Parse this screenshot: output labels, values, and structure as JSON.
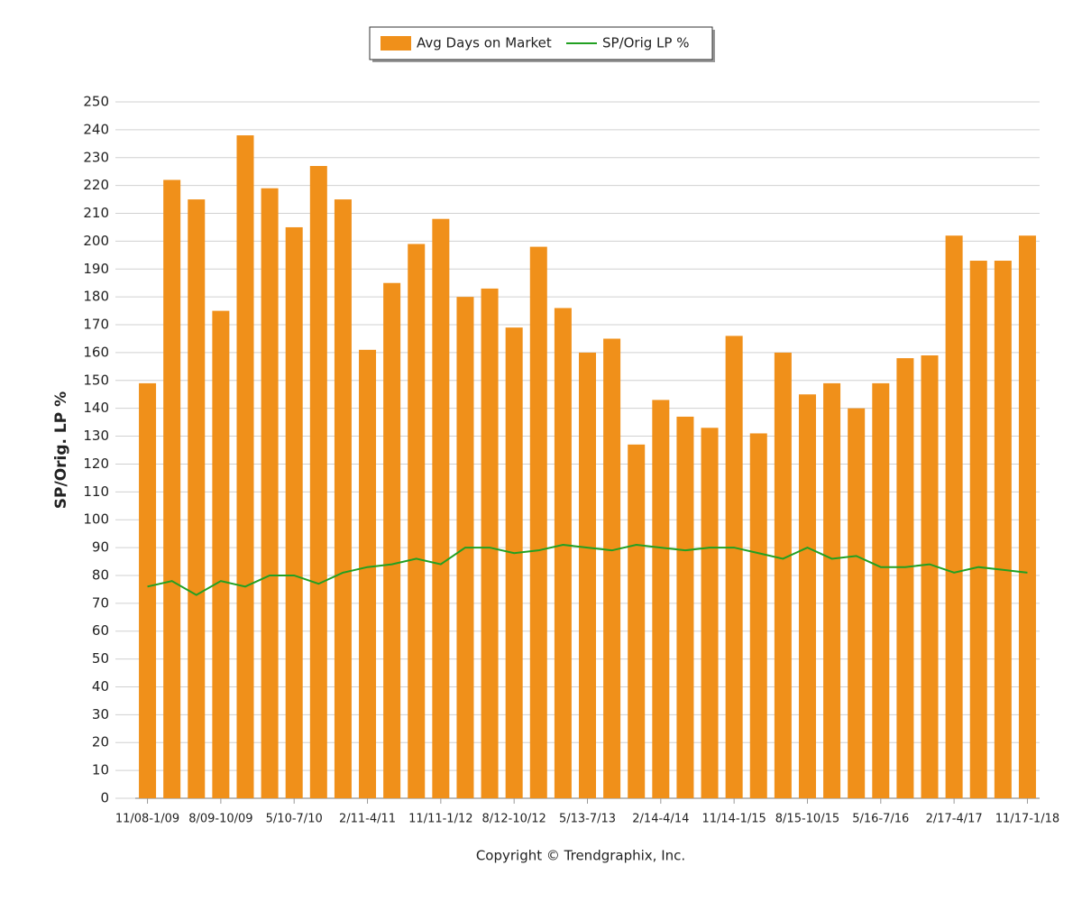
{
  "chart_data": {
    "type": "bar",
    "y_axis_label": "SP/Orig. LP %",
    "footer": "Copyright © Trendgraphix, Inc.",
    "legend_position": "top",
    "grid": true,
    "categories": [
      "11/08-1/09",
      null,
      null,
      "8/09-10/09",
      null,
      null,
      "5/10-7/10",
      null,
      null,
      "2/11-4/11",
      null,
      null,
      "11/11-1/12",
      null,
      null,
      "8/12-10/12",
      null,
      null,
      "5/13-7/13",
      null,
      null,
      "2/14-4/14",
      null,
      null,
      "11/14-1/15",
      null,
      null,
      "8/15-10/15",
      null,
      null,
      "5/16-7/16",
      null,
      null,
      "2/17-4/17",
      null,
      null,
      "11/17-1/18"
    ],
    "series": [
      {
        "name": "Avg Days on Market",
        "type": "bar",
        "color": "#f0901a",
        "values": [
          149,
          222,
          215,
          175,
          238,
          219,
          205,
          227,
          215,
          161,
          185,
          199,
          208,
          180,
          183,
          169,
          198,
          176,
          160,
          165,
          127,
          143,
          137,
          133,
          166,
          131,
          160,
          145,
          149,
          140,
          149,
          158,
          159,
          202,
          193,
          193,
          202
        ]
      },
      {
        "name": "SP/Orig LP %",
        "type": "line",
        "color": "#22a022",
        "values": [
          76,
          78,
          73,
          78,
          76,
          80,
          80,
          77,
          81,
          83,
          84,
          86,
          84,
          90,
          90,
          88,
          89,
          91,
          90,
          89,
          91,
          90,
          89,
          90,
          90,
          88,
          86,
          90,
          86,
          87,
          83,
          83,
          84,
          81,
          83,
          82,
          81
        ]
      }
    ],
    "ylim": [
      0,
      250
    ],
    "yticks": [
      0,
      10,
      20,
      30,
      40,
      50,
      60,
      70,
      80,
      90,
      100,
      110,
      120,
      130,
      140,
      150,
      160,
      170,
      180,
      190,
      200,
      210,
      220,
      230,
      240,
      250
    ]
  }
}
